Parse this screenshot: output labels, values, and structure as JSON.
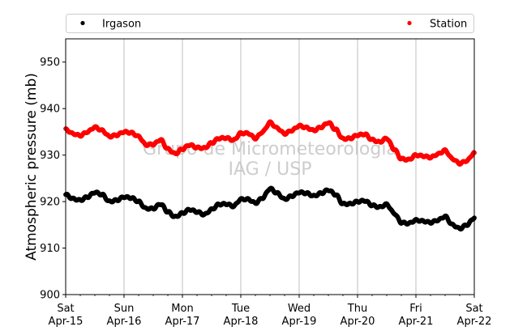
{
  "chart_data": {
    "type": "scatter",
    "ylabel": "Atmospheric pressure (mb)",
    "ylim": [
      900,
      955
    ],
    "yticks": [
      900,
      910,
      920,
      930,
      940,
      950
    ],
    "x_tick_labels": [
      {
        "day": "Sat",
        "date": "Apr-15"
      },
      {
        "day": "Sun",
        "date": "Apr-16"
      },
      {
        "day": "Mon",
        "date": "Apr-17"
      },
      {
        "day": "Tue",
        "date": "Apr-18"
      },
      {
        "day": "Wed",
        "date": "Apr-19"
      },
      {
        "day": "Thu",
        "date": "Apr-20"
      },
      {
        "day": "Fri",
        "date": "Apr-21"
      },
      {
        "day": "Sat",
        "date": "Apr-22"
      }
    ],
    "xlim": [
      "Apr-15",
      "Apr-22"
    ],
    "grid": "vertical lines at each day",
    "legend_position": "top (above plot)",
    "watermark": [
      "Grupo de Micrometeorologia",
      "IAG / USP"
    ],
    "series": [
      {
        "name": "Irgason",
        "color": "#000000",
        "points": [
          [
            "Apr-15 00:00",
            921.5
          ],
          [
            "Apr-15 03:00",
            920.6
          ],
          [
            "Apr-15 06:00",
            920.3
          ],
          [
            "Apr-15 09:00",
            921.0
          ],
          [
            "Apr-15 12:00",
            922.0
          ],
          [
            "Apr-15 15:00",
            921.5
          ],
          [
            "Apr-15 18:00",
            920.0
          ],
          [
            "Apr-15 21:00",
            920.3
          ],
          [
            "Apr-16 00:00",
            921.0
          ],
          [
            "Apr-16 03:00",
            920.8
          ],
          [
            "Apr-16 06:00",
            920.0
          ],
          [
            "Apr-16 09:00",
            918.5
          ],
          [
            "Apr-16 12:00",
            918.5
          ],
          [
            "Apr-16 15:00",
            919.5
          ],
          [
            "Apr-16 18:00",
            917.8
          ],
          [
            "Apr-16 21:00",
            916.7
          ],
          [
            "Apr-17 00:00",
            917.5
          ],
          [
            "Apr-17 03:00",
            918.3
          ],
          [
            "Apr-17 06:00",
            917.8
          ],
          [
            "Apr-17 09:00",
            917.2
          ],
          [
            "Apr-17 12:00",
            918.3
          ],
          [
            "Apr-17 15:00",
            919.4
          ],
          [
            "Apr-17 18:00",
            919.5
          ],
          [
            "Apr-17 21:00",
            919.0
          ],
          [
            "Apr-18 00:00",
            920.5
          ],
          [
            "Apr-18 03:00",
            920.5
          ],
          [
            "Apr-18 06:00",
            919.7
          ],
          [
            "Apr-18 09:00",
            920.8
          ],
          [
            "Apr-18 12:00",
            922.8
          ],
          [
            "Apr-18 15:00",
            921.8
          ],
          [
            "Apr-18 18:00",
            920.5
          ],
          [
            "Apr-18 21:00",
            921.2
          ],
          [
            "Apr-19 00:00",
            922.0
          ],
          [
            "Apr-19 03:00",
            921.8
          ],
          [
            "Apr-19 06:00",
            921.2
          ],
          [
            "Apr-19 09:00",
            921.8
          ],
          [
            "Apr-19 12:00",
            922.5
          ],
          [
            "Apr-19 15:00",
            921.5
          ],
          [
            "Apr-19 18:00",
            919.5
          ],
          [
            "Apr-19 21:00",
            919.5
          ],
          [
            "Apr-20 00:00",
            920.0
          ],
          [
            "Apr-20 03:00",
            920.2
          ],
          [
            "Apr-20 06:00",
            919.2
          ],
          [
            "Apr-20 09:00",
            918.8
          ],
          [
            "Apr-20 12:00",
            919.4
          ],
          [
            "Apr-20 15:00",
            917.5
          ],
          [
            "Apr-20 18:00",
            915.5
          ],
          [
            "Apr-20 21:00",
            915.3
          ],
          [
            "Apr-21 00:00",
            916.0
          ],
          [
            "Apr-21 03:00",
            915.8
          ],
          [
            "Apr-21 06:00",
            915.5
          ],
          [
            "Apr-21 09:00",
            916.0
          ],
          [
            "Apr-21 12:00",
            916.8
          ],
          [
            "Apr-21 15:00",
            915.0
          ],
          [
            "Apr-21 18:00",
            914.2
          ],
          [
            "Apr-21 21:00",
            915.0
          ],
          [
            "Apr-22 00:00",
            916.5
          ]
        ]
      },
      {
        "name": "Station",
        "color": "#ff0000",
        "points": [
          [
            "Apr-15 00:00",
            935.5
          ],
          [
            "Apr-15 03:00",
            934.6
          ],
          [
            "Apr-15 06:00",
            934.2
          ],
          [
            "Apr-15 09:00",
            935.0
          ],
          [
            "Apr-15 12:00",
            936.0
          ],
          [
            "Apr-15 15:00",
            935.3
          ],
          [
            "Apr-15 18:00",
            934.0
          ],
          [
            "Apr-15 21:00",
            934.3
          ],
          [
            "Apr-16 00:00",
            935.0
          ],
          [
            "Apr-16 03:00",
            934.8
          ],
          [
            "Apr-16 06:00",
            934.0
          ],
          [
            "Apr-16 09:00",
            932.2
          ],
          [
            "Apr-16 12:00",
            932.3
          ],
          [
            "Apr-16 15:00",
            933.3
          ],
          [
            "Apr-16 18:00",
            931.3
          ],
          [
            "Apr-16 21:00",
            930.3
          ],
          [
            "Apr-17 00:00",
            931.3
          ],
          [
            "Apr-17 03:00",
            932.2
          ],
          [
            "Apr-17 06:00",
            931.6
          ],
          [
            "Apr-17 09:00",
            931.5
          ],
          [
            "Apr-17 12:00",
            932.6
          ],
          [
            "Apr-17 15:00",
            933.6
          ],
          [
            "Apr-17 18:00",
            933.7
          ],
          [
            "Apr-17 21:00",
            933.2
          ],
          [
            "Apr-18 00:00",
            934.7
          ],
          [
            "Apr-18 03:00",
            934.7
          ],
          [
            "Apr-18 06:00",
            933.6
          ],
          [
            "Apr-18 09:00",
            935.0
          ],
          [
            "Apr-18 12:00",
            937.0
          ],
          [
            "Apr-18 15:00",
            935.8
          ],
          [
            "Apr-18 18:00",
            934.6
          ],
          [
            "Apr-18 21:00",
            935.3
          ],
          [
            "Apr-19 00:00",
            936.3
          ],
          [
            "Apr-19 03:00",
            935.9
          ],
          [
            "Apr-19 06:00",
            935.3
          ],
          [
            "Apr-19 09:00",
            936.0
          ],
          [
            "Apr-19 12:00",
            937.0
          ],
          [
            "Apr-19 15:00",
            935.5
          ],
          [
            "Apr-19 18:00",
            933.5
          ],
          [
            "Apr-19 21:00",
            933.6
          ],
          [
            "Apr-20 00:00",
            934.3
          ],
          [
            "Apr-20 03:00",
            934.5
          ],
          [
            "Apr-20 06:00",
            933.3
          ],
          [
            "Apr-20 09:00",
            932.8
          ],
          [
            "Apr-20 12:00",
            933.6
          ],
          [
            "Apr-20 15:00",
            931.3
          ],
          [
            "Apr-20 18:00",
            929.2
          ],
          [
            "Apr-20 21:00",
            929.0
          ],
          [
            "Apr-21 00:00",
            930.0
          ],
          [
            "Apr-21 03:00",
            929.8
          ],
          [
            "Apr-21 06:00",
            929.5
          ],
          [
            "Apr-21 09:00",
            930.2
          ],
          [
            "Apr-21 12:00",
            931.0
          ],
          [
            "Apr-21 15:00",
            929.2
          ],
          [
            "Apr-21 18:00",
            928.2
          ],
          [
            "Apr-21 21:00",
            928.8
          ],
          [
            "Apr-22 00:00",
            930.5
          ]
        ]
      }
    ]
  }
}
